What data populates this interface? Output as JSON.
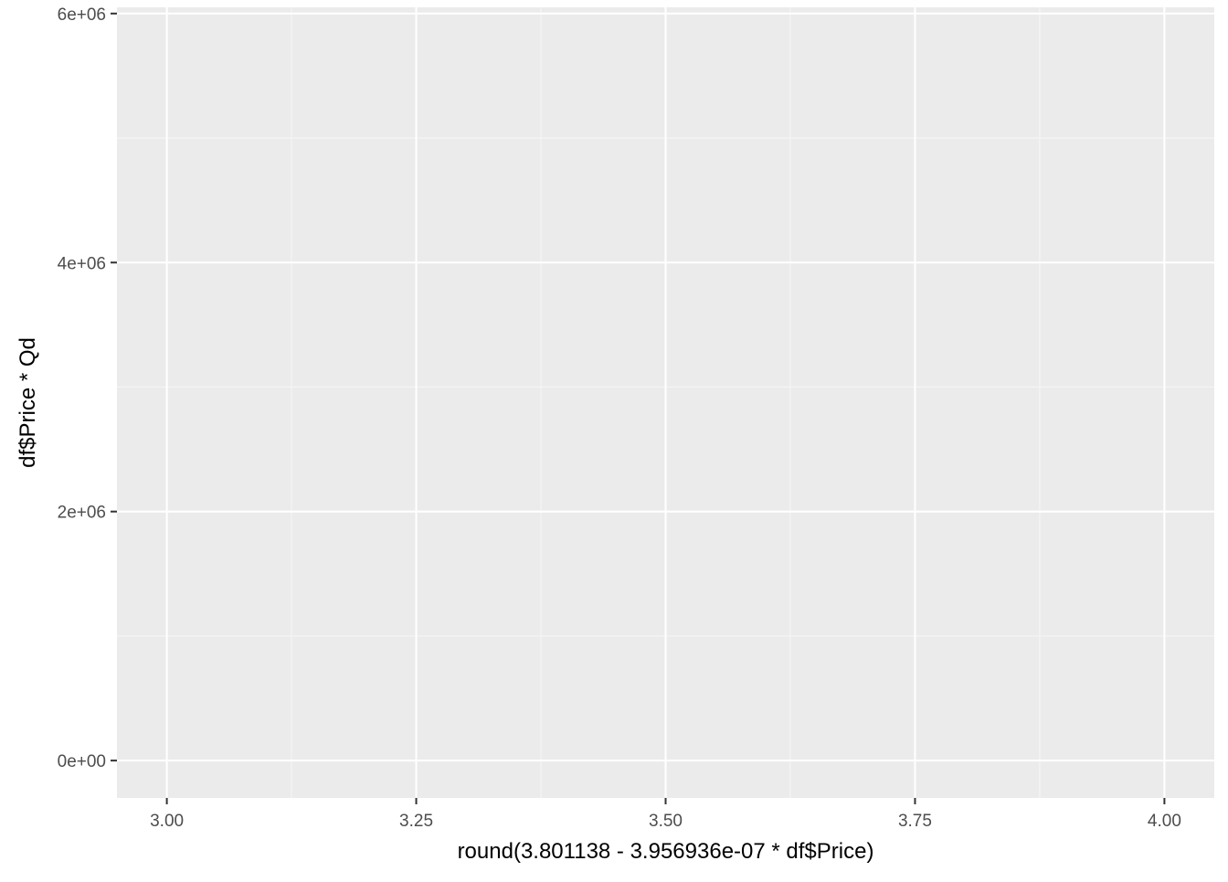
{
  "chart_data": {
    "type": "scatter",
    "title": "",
    "xlabel": "round(3.801138 - 3.956936e-07 * df$Price)",
    "ylabel": "df$Price * Qd",
    "xlim": [
      2.95,
      4.05
    ],
    "ylim": [
      -300000,
      6050000
    ],
    "x_ticks": [
      {
        "value": 3.0,
        "label": "3.00"
      },
      {
        "value": 3.25,
        "label": "3.25"
      },
      {
        "value": 3.5,
        "label": "3.50"
      },
      {
        "value": 3.75,
        "label": "3.75"
      },
      {
        "value": 4.0,
        "label": "4.00"
      }
    ],
    "x_minor_ticks": [
      3.125,
      3.375,
      3.625,
      3.875
    ],
    "y_ticks": [
      {
        "value": 0,
        "label": "0e+00"
      },
      {
        "value": 2000000,
        "label": "2e+06"
      },
      {
        "value": 4000000,
        "label": "4e+06"
      },
      {
        "value": 6000000,
        "label": "6e+06"
      }
    ],
    "y_minor_ticks": [
      1000000,
      3000000,
      5000000
    ],
    "points": [],
    "grid": true,
    "colors": {
      "panel_background": "#ebebeb",
      "grid_major": "#ffffff",
      "grid_minor": "#f5f5f5",
      "tick_mark": "#333333",
      "tick_label": "#4d4d4d",
      "axis_title": "#000000"
    }
  }
}
